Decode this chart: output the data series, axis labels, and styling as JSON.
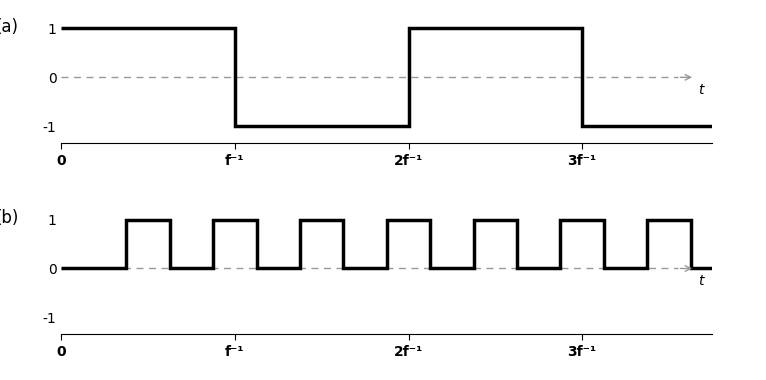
{
  "fig_width": 7.66,
  "fig_height": 3.8,
  "dpi": 100,
  "background_color": "#ffffff",
  "line_color": "#000000",
  "dashed_color": "#999999",
  "panel_a_label": "(a)",
  "panel_b_label": "(b)",
  "xtick_positions": [
    0,
    1,
    2,
    3
  ],
  "xtick_labels_a": [
    "0",
    "f⁻¹",
    "2f⁻¹",
    "3f⁻¹"
  ],
  "xtick_labels_b": [
    "0",
    "f⁻¹",
    "2f⁻¹",
    "3f⁻¹"
  ],
  "xlim": [
    0,
    3.75
  ],
  "ylim_a": [
    -1.35,
    1.35
  ],
  "ylim_b": [
    -1.35,
    1.35
  ],
  "t_label": "t",
  "lw": 2.5,
  "spine_lw": 0.8,
  "wave_b_rise": 0.375,
  "wave_b_period": 0.5,
  "arrow_color": "#555555"
}
